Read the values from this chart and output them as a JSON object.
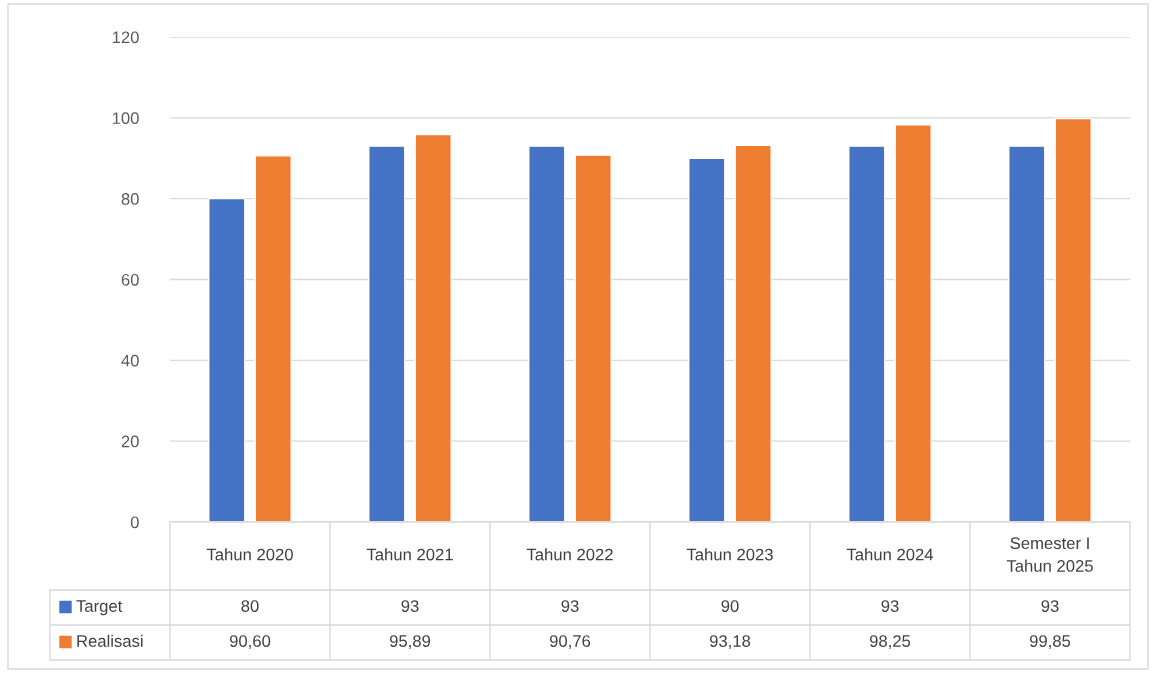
{
  "chart_data": {
    "type": "bar",
    "categories": [
      "Tahun 2020",
      "Tahun 2021",
      "Tahun 2022",
      "Tahun 2023",
      "Tahun 2024",
      "Semester I\nTahun 2025"
    ],
    "series": [
      {
        "name": "Target",
        "color": "#4472c4",
        "values": [
          80,
          93,
          93,
          90,
          93,
          93
        ],
        "value_labels": [
          "80",
          "93",
          "93",
          "90",
          "93",
          "93"
        ]
      },
      {
        "name": "Realisasi",
        "color": "#ed7d31",
        "values": [
          90.6,
          95.89,
          90.76,
          93.18,
          98.25,
          99.85
        ],
        "value_labels": [
          "90,60",
          "95,89",
          "90,76",
          "93,18",
          "98,25",
          "99,85"
        ]
      }
    ],
    "ylim": [
      0,
      120
    ],
    "yticks": [
      0,
      20,
      40,
      60,
      80,
      100,
      120
    ],
    "grid": "y",
    "legend": "bottom"
  }
}
